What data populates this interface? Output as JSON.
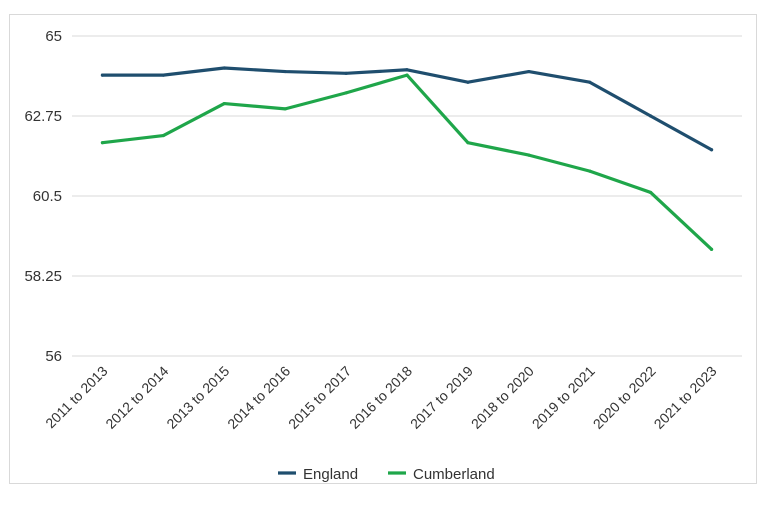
{
  "chart_data": {
    "type": "line",
    "categories": [
      "2011 to 2013",
      "2012 to 2014",
      "2013 to 2015",
      "2014 to 2016",
      "2015 to 2017",
      "2016 to 2018",
      "2017 to 2019",
      "2018 to 2020",
      "2019 to 2021",
      "2020 to 2022",
      "2021 to 2023"
    ],
    "series": [
      {
        "name": "England",
        "color": "#1f4e6e",
        "values": [
          63.9,
          63.9,
          64.1,
          64.0,
          63.95,
          64.05,
          63.7,
          64.0,
          63.7,
          62.75,
          61.8
        ]
      },
      {
        "name": "Cumberland",
        "color": "#1fa64a",
        "values": [
          62.0,
          62.2,
          63.1,
          62.95,
          63.4,
          63.9,
          62.0,
          61.65,
          61.2,
          60.6,
          59.0
        ]
      }
    ],
    "yticks": [
      "65",
      "62.75",
      "60.5",
      "58.25",
      "56"
    ],
    "ylim": [
      56,
      65
    ],
    "grid": true,
    "legend_position": "bottom"
  }
}
